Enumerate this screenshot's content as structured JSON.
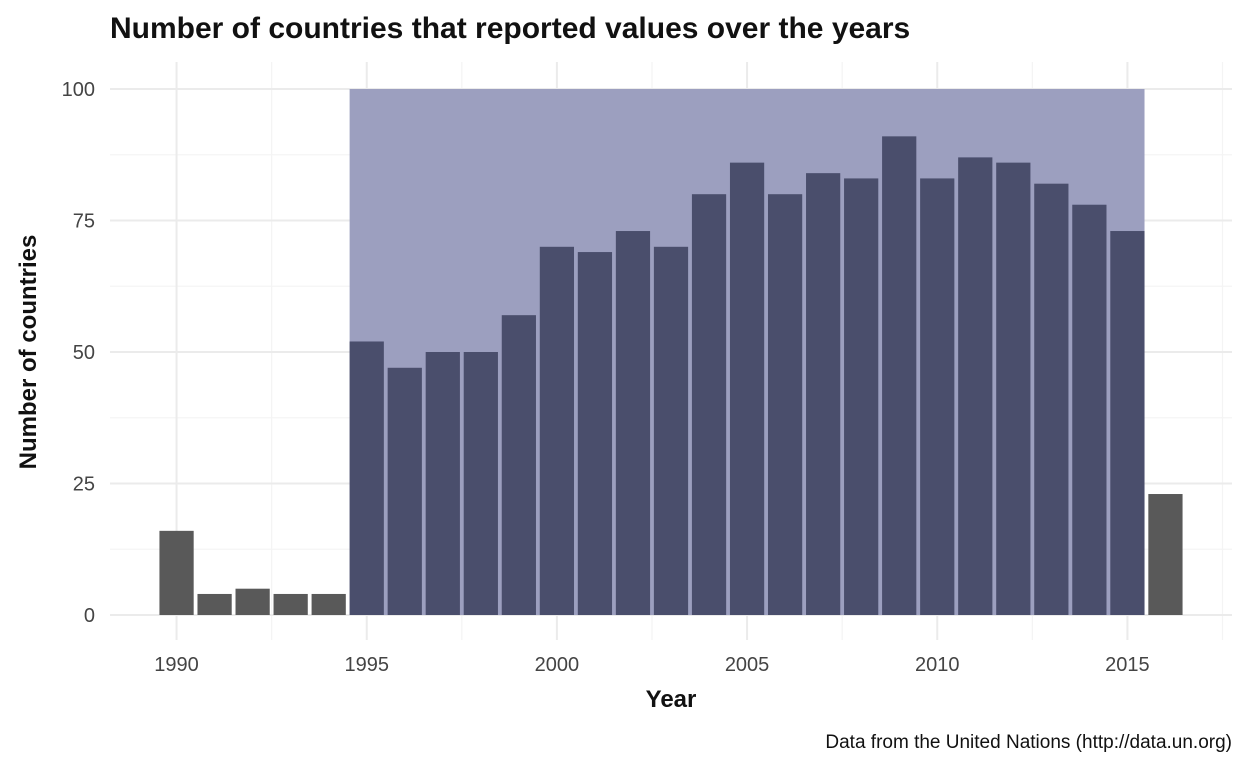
{
  "chart_data": {
    "type": "bar",
    "title": "Number of countries that reported values over the years",
    "xlabel": "Year",
    "ylabel": "Number of countries",
    "caption": "Data from the United Nations (http://data.un.org)",
    "x": [
      1990,
      1991,
      1992,
      1993,
      1994,
      1995,
      1996,
      1997,
      1998,
      1999,
      2000,
      2001,
      2002,
      2003,
      2004,
      2005,
      2006,
      2007,
      2008,
      2009,
      2010,
      2011,
      2012,
      2013,
      2014,
      2015,
      2016
    ],
    "values": [
      16,
      4,
      5,
      4,
      4,
      52,
      47,
      50,
      50,
      57,
      70,
      69,
      73,
      70,
      80,
      86,
      80,
      84,
      83,
      91,
      83,
      87,
      86,
      82,
      78,
      73,
      23
    ],
    "x_ticks": [
      1990,
      1995,
      2000,
      2005,
      2010,
      2015
    ],
    "y_ticks": [
      0,
      25,
      50,
      75,
      100
    ],
    "xlim": [
      1988.25,
      2017.75
    ],
    "ylim": [
      0,
      100
    ],
    "grid": true,
    "highlight_range": {
      "x": [
        1995,
        2015
      ],
      "y": [
        0,
        100
      ]
    },
    "colors": {
      "bar_default": "#595959",
      "bar_highlight": "#4a4e6c",
      "highlight_band": "#9c9fbf",
      "grid_major": "#ebebeb",
      "grid_minor": "#f4f4f4"
    }
  }
}
